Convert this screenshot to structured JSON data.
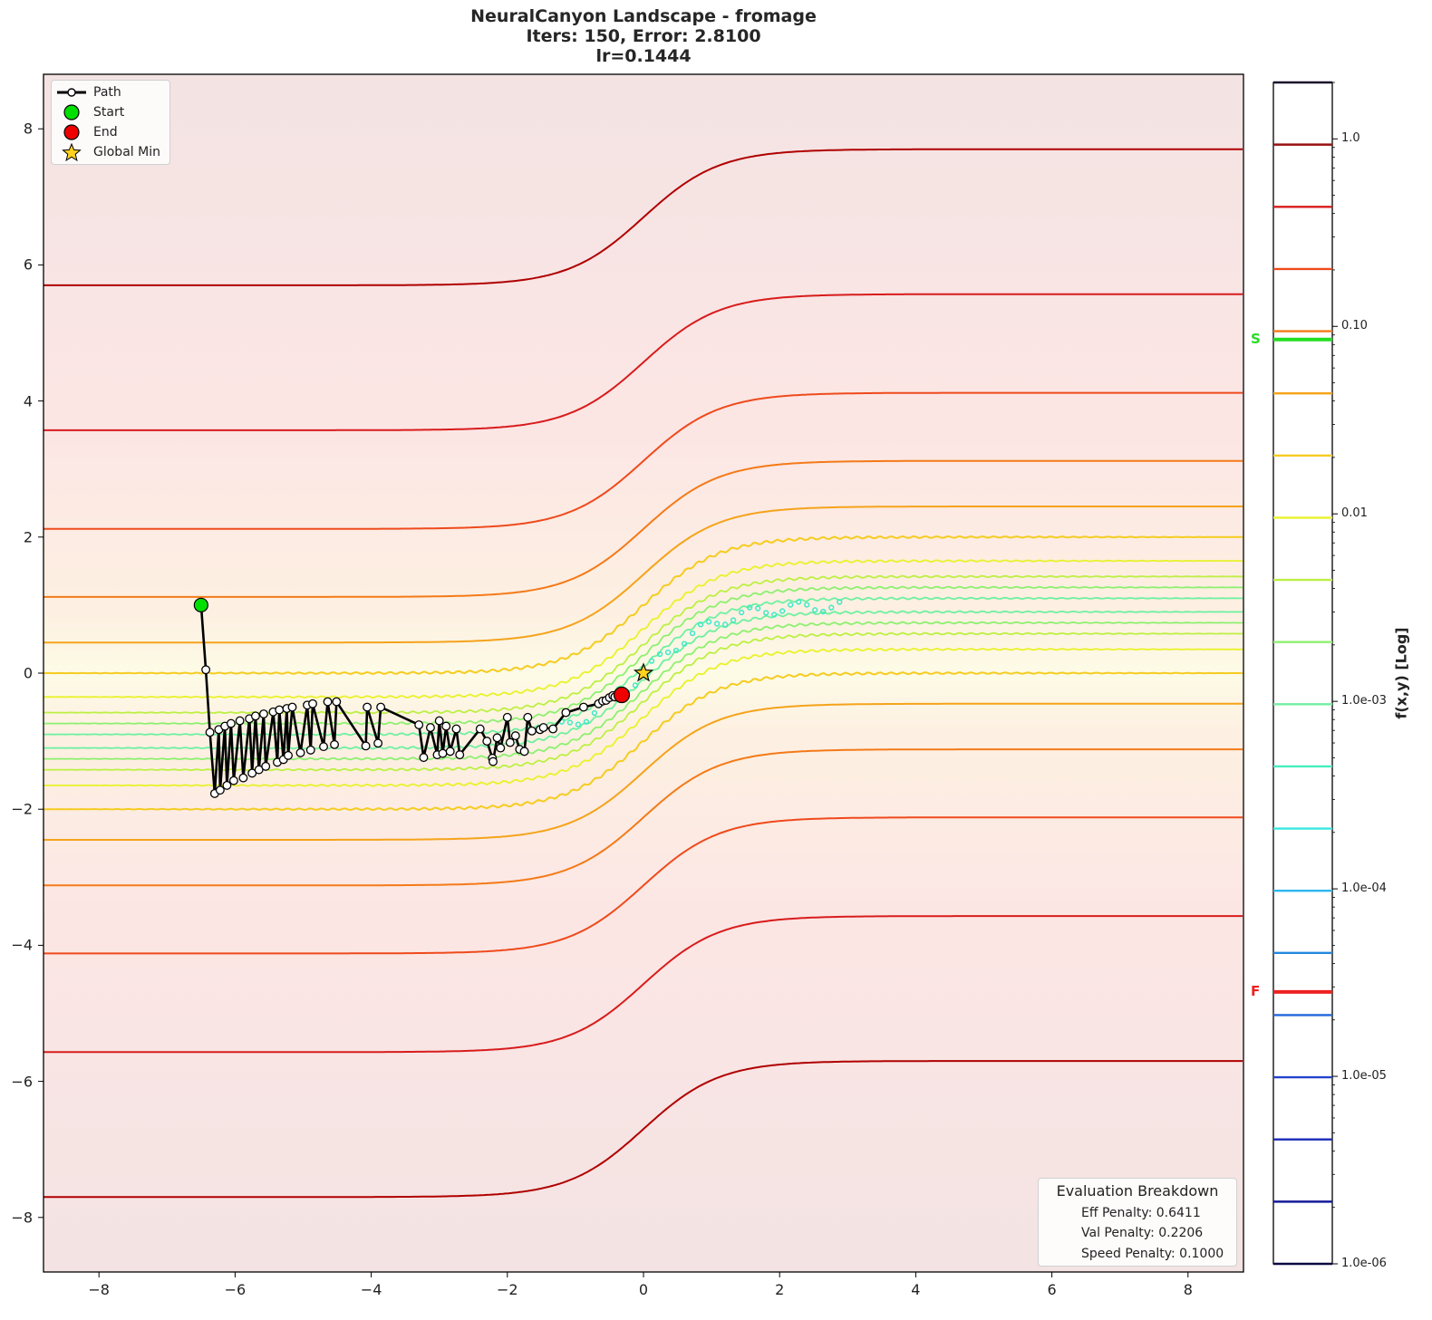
{
  "title": {
    "line1": "NeuralCanyon Landscape - fromage",
    "line2": "Iters: 150, Error: 2.8100",
    "line3": "lr=0.1444"
  },
  "legend": {
    "items": [
      {
        "label": "Path",
        "symbol": "line-with-white-circle",
        "color": "#000000"
      },
      {
        "label": "Start",
        "symbol": "circle",
        "color": "#00e000"
      },
      {
        "label": "End",
        "symbol": "circle",
        "color": "#ee0000"
      },
      {
        "label": "Global Min",
        "symbol": "star",
        "color": "#ffd21f"
      }
    ]
  },
  "eval_box": {
    "title": "Evaluation Breakdown",
    "rows": [
      "Eff Penalty: 0.6411",
      "Val Penalty: 0.2206",
      "Speed Penalty: 0.1000"
    ]
  },
  "colorbar": {
    "label": "f(x,y) [Log]",
    "tick_labels": [
      "1.0",
      "0.10",
      "0.01",
      "1.0e-03",
      "1.0e-04",
      "1.0e-05",
      "1.0e-06"
    ],
    "markers": [
      {
        "label": "S",
        "color": "#22dd22",
        "value_log10": -1.07
      },
      {
        "label": "F",
        "color": "#ee2222",
        "value_log10": -4.55
      }
    ]
  },
  "chart_data": {
    "type": "contour",
    "title": "NeuralCanyon Landscape - fromage\nIters: 150, Error: 2.8100\nlr=0.1444",
    "xlabel": "",
    "ylabel": "",
    "xlim": [
      -8.8,
      8.8
    ],
    "ylim": [
      -8.8,
      8.8
    ],
    "xticks": [
      -8,
      -6,
      -4,
      -2,
      0,
      2,
      4,
      6,
      8
    ],
    "yticks": [
      -8,
      -6,
      -4,
      -2,
      0,
      2,
      4,
      6,
      8
    ],
    "grid": false,
    "colorbar": {
      "scale": "log",
      "range": [
        1e-06,
        2.0
      ],
      "label": "f(x,y) [Log]"
    },
    "canyon_center": "y = tanh(0.9 x)",
    "contour_offsets": [
      6.7,
      4.57,
      3.12,
      2.12,
      1.45,
      1.0,
      0.65,
      0.42,
      0.26,
      0.1
    ],
    "contour_colors": [
      "#b00000",
      "#d81c1c",
      "#ef4a1c",
      "#f47a18",
      "#f5a31a",
      "#f5cc22",
      "#e9f22a",
      "#bdf044",
      "#8ef070",
      "#6ff0a0"
    ],
    "global_min": {
      "x": 0.0,
      "y": 0.0
    },
    "start": {
      "x": -6.5,
      "y": 1.0
    },
    "end": {
      "x": -0.32,
      "y": -0.32
    },
    "path": {
      "x": [
        -6.5,
        -6.43,
        -6.37,
        -6.3,
        -6.24,
        -6.22,
        -6.15,
        -6.12,
        -6.06,
        -6.02,
        -5.93,
        -5.88,
        -5.79,
        -5.75,
        -5.7,
        -5.65,
        -5.58,
        -5.55,
        -5.44,
        -5.38,
        -5.35,
        -5.29,
        -5.24,
        -5.22,
        -5.16,
        -5.04,
        -4.94,
        -4.89,
        -4.86,
        -4.7,
        -4.64,
        -4.54,
        -4.51,
        -4.08,
        -4.06,
        -3.9,
        -3.86,
        -3.3,
        -3.23,
        -3.13,
        -3.03,
        -3.0,
        -2.95,
        -2.9,
        -2.84,
        -2.75,
        -2.7,
        -2.4,
        -2.3,
        -2.22,
        -2.21,
        -2.15,
        -2.1,
        -2.0,
        -1.96,
        -1.88,
        -1.82,
        -1.75,
        -1.7,
        -1.64,
        -1.52,
        -1.47,
        -1.33,
        -1.14,
        -0.88,
        -0.66,
        -0.6,
        -0.55,
        -0.5,
        -0.45,
        -0.42,
        -0.37,
        -0.32
      ],
      "y": [
        1.0,
        0.05,
        -0.87,
        -1.77,
        -0.83,
        -1.72,
        -0.78,
        -1.65,
        -0.74,
        -1.58,
        -0.7,
        -1.54,
        -0.67,
        -1.47,
        -0.63,
        -1.42,
        -0.6,
        -1.37,
        -0.57,
        -1.31,
        -0.54,
        -1.27,
        -0.52,
        -1.21,
        -0.5,
        -1.17,
        -0.47,
        -1.13,
        -0.45,
        -1.08,
        -0.42,
        -1.05,
        -0.42,
        -1.07,
        -0.5,
        -1.03,
        -0.5,
        -0.76,
        -1.24,
        -0.8,
        -1.2,
        -0.7,
        -1.18,
        -0.78,
        -1.15,
        -0.82,
        -1.2,
        -0.82,
        -1.0,
        -1.25,
        -1.3,
        -0.95,
        -1.1,
        -0.65,
        -1.02,
        -0.92,
        -1.12,
        -1.15,
        -0.65,
        -0.85,
        -0.83,
        -0.8,
        -0.82,
        -0.58,
        -0.5,
        -0.45,
        -0.41,
        -0.4,
        -0.36,
        -0.33,
        -0.35,
        -0.32,
        -0.32
      ]
    }
  }
}
